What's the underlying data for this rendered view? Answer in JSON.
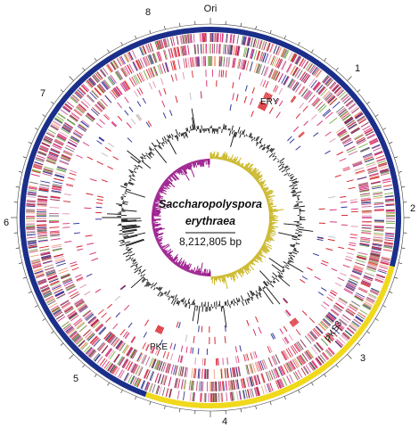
{
  "organism": {
    "genus": "Saccharopolyspora",
    "species": "erythraea",
    "genome_size": "8,212,805 bp"
  },
  "origin_label": "Ori",
  "position_labels": [
    "1",
    "2",
    "3",
    "4",
    "5",
    "6",
    "7",
    "8"
  ],
  "cluster_labels": {
    "ery": "ERY",
    "pks3": "PKS3",
    "pke": "PKE"
  },
  "colors": {
    "core_arc": "#1b2f8a",
    "variable_arc": "#f0d81c",
    "gc_content": "#111111",
    "gc_skew_positive": "#c8b41e",
    "gc_skew_negative": "#9a1a8c",
    "feature_red": "#d8262c",
    "feature_pink": "#d7357a",
    "feature_blue": "#34399a",
    "feature_green": "#7bb04a"
  }
}
